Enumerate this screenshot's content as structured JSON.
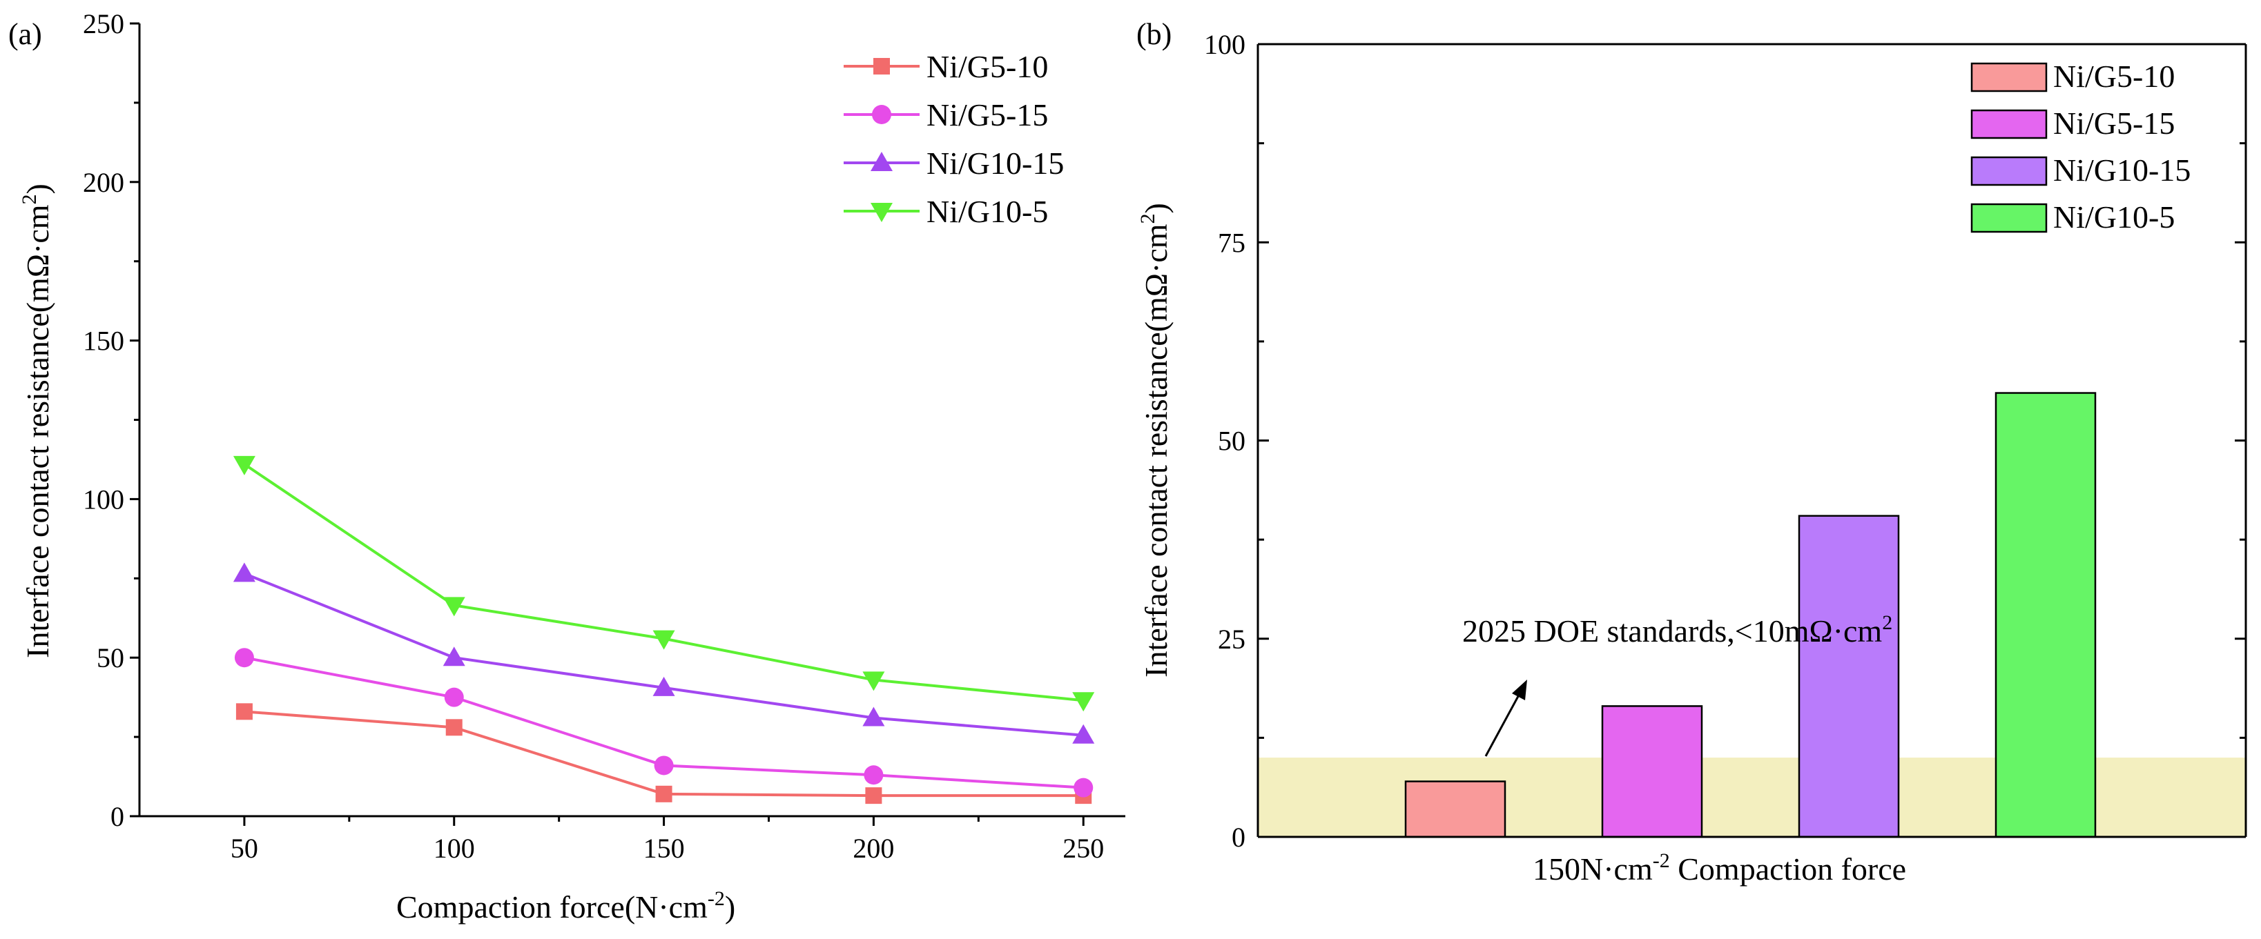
{
  "panel_labels": {
    "a": "(a)",
    "b": "(b)"
  },
  "chart_data": [
    {
      "type": "line",
      "panel": "(a)",
      "xlabel": "Compaction force(N·cm",
      "xlabel_sup": "-2",
      "xlabel_tail": ")",
      "ylabel": "Interface contact resistance(mΩ·cm",
      "ylabel_sup": "2",
      "ylabel_tail": ")",
      "x": [
        50,
        100,
        150,
        200,
        250
      ],
      "xlim": [
        25,
        260
      ],
      "ylim": [
        0,
        250
      ],
      "xticks": [
        "50",
        "100",
        "150",
        "200",
        "250"
      ],
      "yticks": [
        "0",
        "50",
        "100",
        "150",
        "200",
        "250"
      ],
      "legend_position": "top-right",
      "series": [
        {
          "name": "Ni/G5-10",
          "marker": "square",
          "color": "#f26b6b",
          "values": [
            33,
            28,
            7,
            6.5,
            6.5
          ]
        },
        {
          "name": "Ni/G5-15",
          "marker": "circle",
          "color": "#e64ce8",
          "values": [
            50,
            37.5,
            16,
            13,
            9
          ]
        },
        {
          "name": "Ni/G10-15",
          "marker": "triangle-up",
          "color": "#a247f0",
          "values": [
            76.5,
            50,
            40.5,
            31,
            25.5
          ]
        },
        {
          "name": "Ni/G10-5",
          "marker": "triangle-down",
          "color": "#5cf032",
          "values": [
            111,
            66.5,
            56,
            43,
            36.5
          ]
        }
      ]
    },
    {
      "type": "bar",
      "panel": "(b)",
      "xlabel": "150N·cm",
      "xlabel_sup": "-2",
      "xlabel_tail": " Compaction force",
      "ylabel": "Interface contact resistance(mΩ·cm",
      "ylabel_sup": "2",
      "ylabel_tail": ")",
      "ylim": [
        0,
        100
      ],
      "yticks": [
        "0",
        "25",
        "50",
        "75",
        "100"
      ],
      "legend_position": "top-right",
      "series": [
        {
          "name": "Ni/G5-10",
          "color": "#f99a9a",
          "values": [
            7
          ]
        },
        {
          "name": "Ni/G5-15",
          "color": "#e466f0",
          "values": [
            16.5
          ]
        },
        {
          "name": "Ni/G10-15",
          "color": "#b97bfb",
          "values": [
            40.5
          ]
        },
        {
          "name": "Ni/G10-5",
          "color": "#66f566",
          "values": [
            56
          ]
        }
      ],
      "threshold": {
        "value": 10,
        "color": "#f3efbf"
      },
      "annotation": {
        "text": "2025 DOE standards,<10mΩ·cm",
        "sup": "2"
      }
    }
  ]
}
